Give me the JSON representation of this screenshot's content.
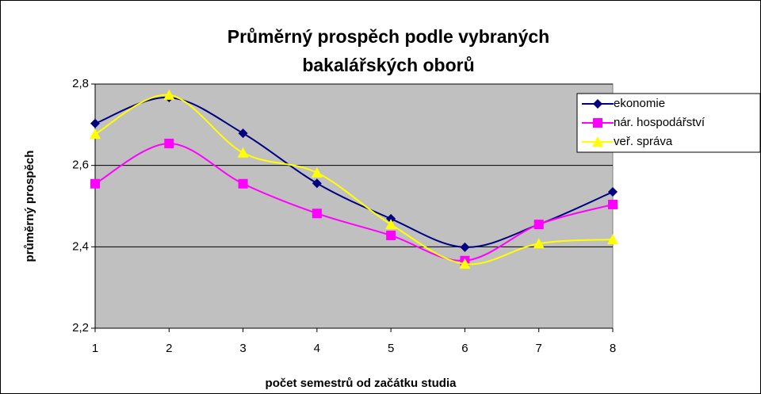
{
  "chart_data": {
    "type": "line",
    "title": [
      "Průměrný prospěch podle vybraných",
      "bakalářských oborů"
    ],
    "x_label": "počet semestrů od začátku studia",
    "y_label": "průměrný prospěch",
    "x": [
      1,
      2,
      3,
      4,
      5,
      6,
      7,
      8
    ],
    "xlim": [
      1,
      8
    ],
    "xticks": [
      1,
      2,
      3,
      4,
      5,
      6,
      7,
      8
    ],
    "ylim": [
      2.2,
      2.8
    ],
    "yticks": [
      {
        "value": 2.2,
        "label": "2,2"
      },
      {
        "value": 2.4,
        "label": "2,4"
      },
      {
        "value": 2.6,
        "label": "2,6"
      },
      {
        "value": 2.8,
        "label": "2,8"
      }
    ],
    "grid": true,
    "smooth": true,
    "legend": "right",
    "series": [
      {
        "name": "ekonomie",
        "color": "#000080",
        "marker": "diamond",
        "values": [
          2.703,
          2.767,
          2.679,
          2.556,
          2.469,
          2.399,
          2.455,
          2.535
        ]
      },
      {
        "name": "nár. hospodářství",
        "color": "#ff00ff",
        "marker": "square",
        "values": [
          2.555,
          2.654,
          2.555,
          2.482,
          2.428,
          2.366,
          2.455,
          2.504
        ]
      },
      {
        "name": "veř. správa",
        "color": "#ffff00",
        "marker": "triangle",
        "values": [
          2.677,
          2.773,
          2.631,
          2.582,
          2.455,
          2.358,
          2.408,
          2.418
        ]
      }
    ]
  }
}
